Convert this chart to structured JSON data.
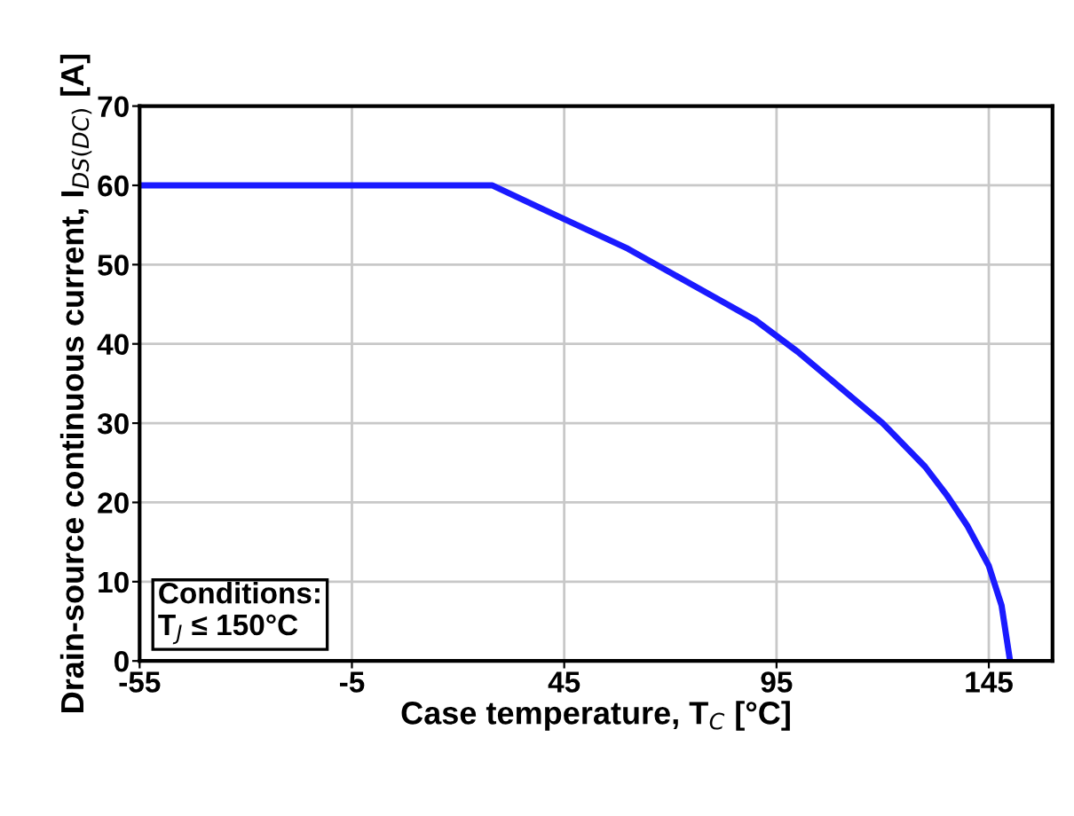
{
  "chart_data": {
    "type": "line",
    "xlabel": "Case temperature, T$_{C}$ [°C]",
    "ylabel": "Drain-source continuous current, I$_{DS(DC)}$ [A]",
    "x": [
      -55,
      28,
      40,
      50,
      60,
      70,
      80,
      90,
      100,
      110,
      120,
      130,
      135,
      140,
      145,
      148,
      150
    ],
    "series": [
      {
        "color": "#1a1aff",
        "values": [
          60,
          60,
          57,
          54.5,
          52,
          49,
          46,
          43,
          39,
          34.5,
          30,
          24.5,
          21,
          17,
          12,
          7,
          0
        ]
      }
    ],
    "xlim": [
      -55,
      160
    ],
    "xticks": [
      -55,
      -5,
      45,
      95,
      145
    ],
    "ylim": [
      0,
      70
    ],
    "yticks": [
      0,
      10,
      20,
      30,
      40,
      50,
      60,
      70
    ],
    "grid": true,
    "legend": false,
    "marker": "none",
    "line_style": "solid",
    "annotations": [
      "Conditions:\nT$_{J}$ ≤ 150°C"
    ]
  }
}
